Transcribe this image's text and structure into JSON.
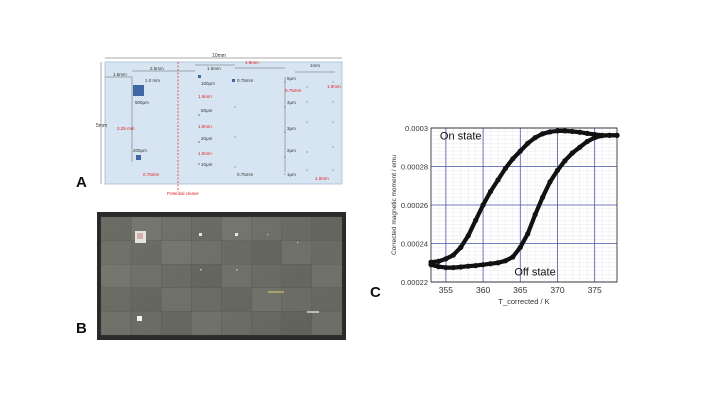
{
  "panels": {
    "a": "A",
    "b": "B",
    "c": "C"
  },
  "panelA": {
    "width_label": "10mm",
    "height_label": "5mm",
    "dims": [
      "1.5mm",
      "2.5mm",
      "1.5mm",
      "1.5mm",
      "1mm",
      "1.0 mm",
      "0.75mm",
      "3.25 mm",
      "0.75mm",
      "0.75mm",
      "1.0mm"
    ],
    "red_dims": [
      "1.5mm",
      "1.5mm",
      "1.0mm",
      "1.5mm",
      "1.0mm",
      "1.0mm",
      "3.25 mm",
      "0.75mm",
      "0.75mm",
      "1.0mm",
      "1.0mm"
    ],
    "sizes": [
      "500μm",
      "200μm",
      "100μm",
      "50μm",
      "20μm",
      "10μm",
      "5μm",
      "4μm",
      "3μm",
      "2μm",
      "1μm"
    ],
    "cleave_label": "Potential cleave",
    "colors": {
      "substrate": "#d7e4f1",
      "border": "#a8bcd2",
      "pad": "#3f67a6",
      "red": "#e02020"
    }
  },
  "panelB": {
    "colors": {
      "frame": "#2a2a2a",
      "field": "#6b6d63"
    }
  },
  "chart_data": {
    "type": "scatter",
    "title": "",
    "xlabel": "T_corrected / K",
    "ylabel": "Corrected magnetic moment / emu",
    "xlim": [
      353,
      378
    ],
    "ylim": [
      0.00022,
      0.0003
    ],
    "xticks": [
      355,
      360,
      365,
      370,
      375
    ],
    "yticks": [
      0.00022,
      0.00024,
      0.00026,
      0.00028,
      0.0003
    ],
    "ytick_labels": [
      "0.00022",
      "0.00024",
      "0.00026",
      "0.00028",
      "0.0003"
    ],
    "grid": true,
    "series": [
      {
        "name": "On state",
        "x": [
          353,
          354,
          355,
          356,
          357,
          358,
          359,
          360,
          361,
          362,
          363,
          364,
          365,
          366,
          367,
          368,
          369,
          370,
          371,
          372,
          373,
          374,
          375,
          376,
          377,
          378
        ],
        "y": [
          0.0002303,
          0.0002307,
          0.000232,
          0.000234,
          0.000238,
          0.000244,
          0.000252,
          0.00026,
          0.000267,
          0.000273,
          0.000279,
          0.000284,
          0.000288,
          0.000292,
          0.000295,
          0.000297,
          0.000298,
          0.0002985,
          0.0002985,
          0.0002982,
          0.0002978,
          0.0002972,
          0.0002966,
          0.0002962,
          0.0002962,
          0.0002962
        ]
      },
      {
        "name": "Off state",
        "x": [
          353,
          354,
          355,
          356,
          357,
          358,
          359,
          360,
          361,
          362,
          363,
          364,
          365,
          366,
          367,
          368,
          369,
          370,
          371,
          372,
          373,
          374,
          375,
          376,
          377,
          378
        ],
        "y": [
          0.000229,
          0.000228,
          0.0002275,
          0.0002275,
          0.0002278,
          0.0002282,
          0.0002285,
          0.000229,
          0.0002295,
          0.00023,
          0.000231,
          0.000233,
          0.000238,
          0.000245,
          0.000255,
          0.000264,
          0.000272,
          0.000278,
          0.000283,
          0.000287,
          0.00029,
          0.000293,
          0.000295,
          0.000296,
          0.0002962,
          0.0002962
        ]
      }
    ],
    "annotations": [
      "On state",
      "Off state"
    ]
  }
}
